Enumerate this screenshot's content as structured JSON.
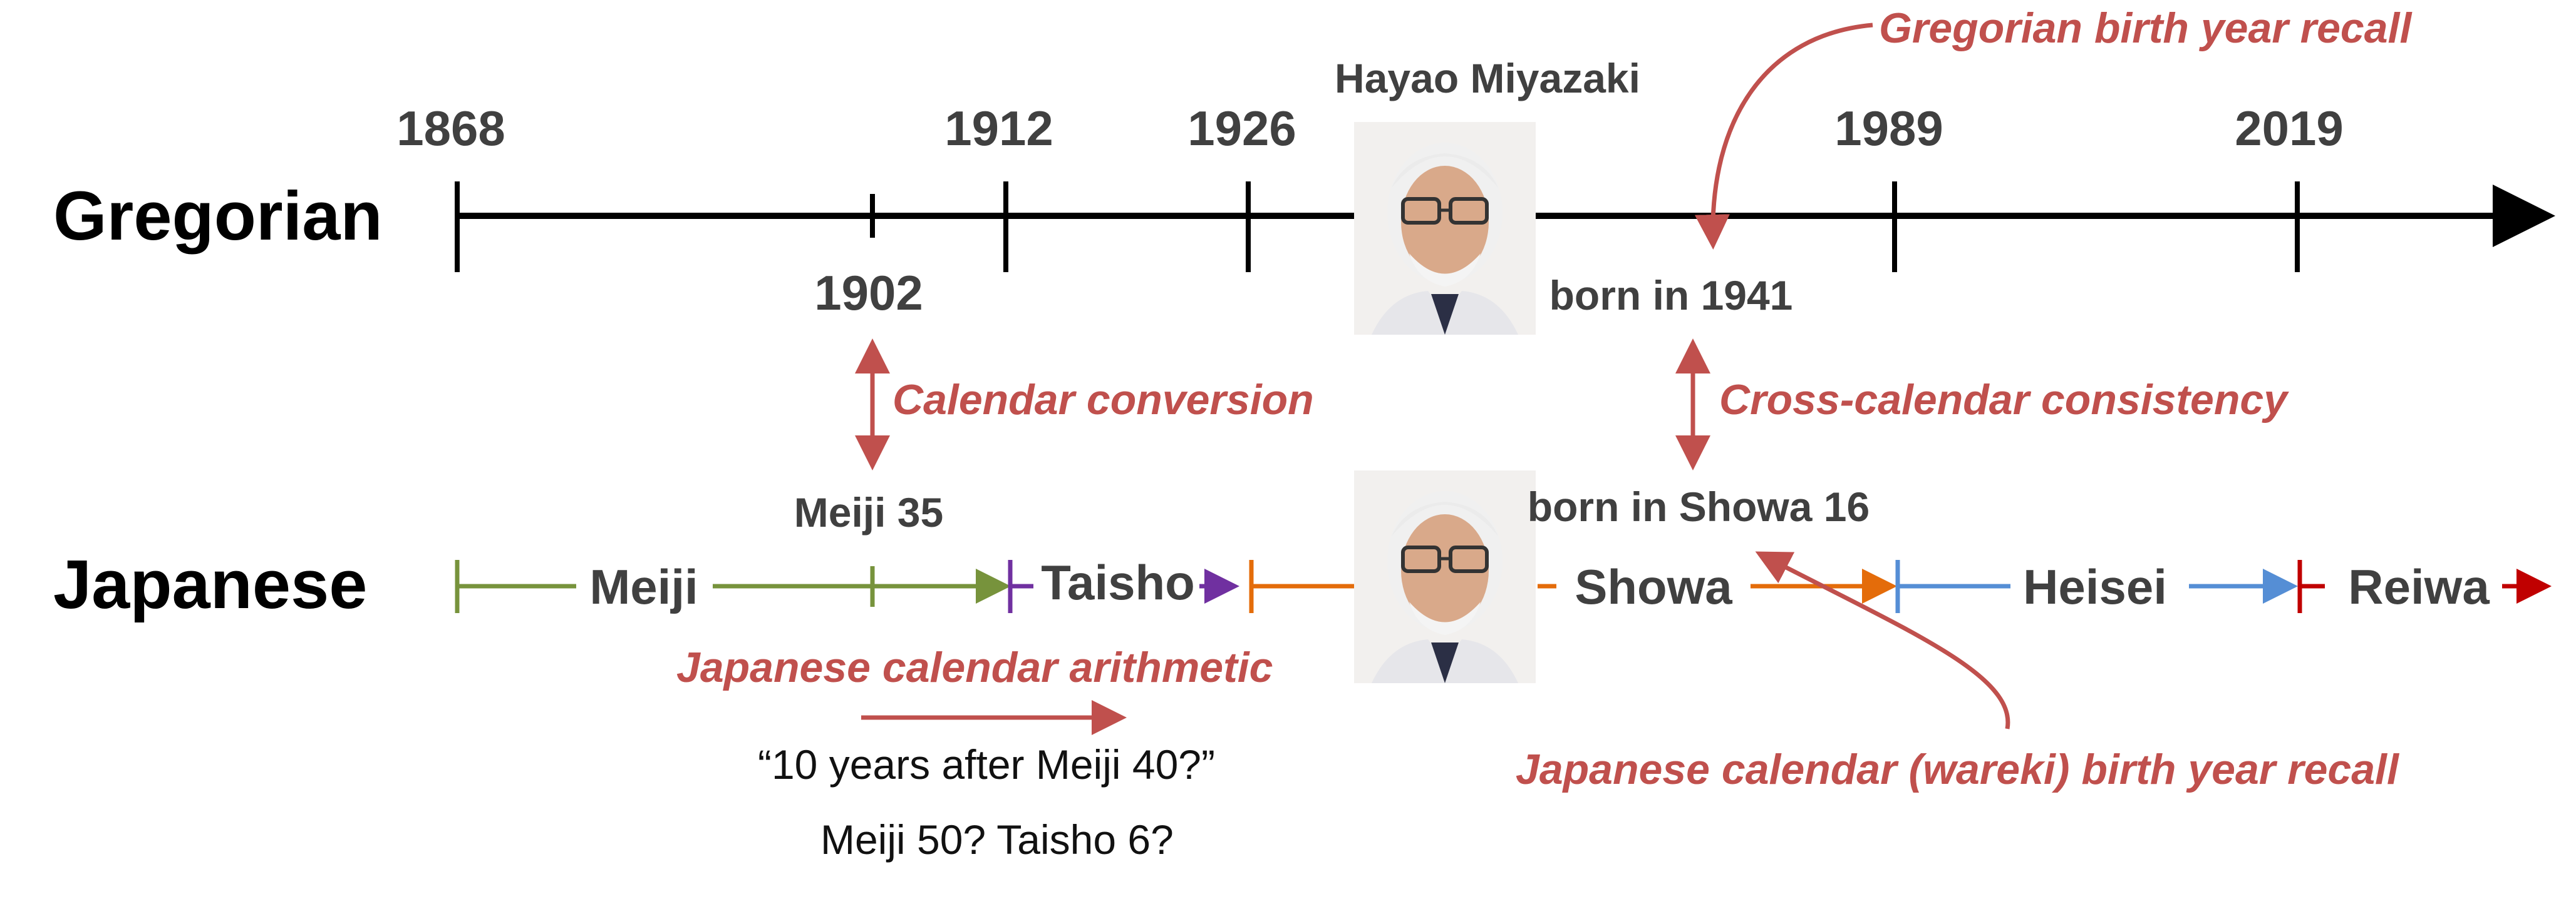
{
  "colors": {
    "axis": "#000000",
    "task": "#c0504d",
    "meiji": "#77933c",
    "taisho": "#7030a0",
    "showa": "#e46c0a",
    "heisei": "#558ed5",
    "reiwa": "#c00000",
    "text": "#404040"
  },
  "rows": {
    "gregorian": "Gregorian",
    "japanese": "Japanese"
  },
  "gregorian_years": {
    "y1868": "1868",
    "y1912": "1912",
    "y1926": "1926",
    "y1989": "1989",
    "y2019": "2019",
    "y1902": "1902"
  },
  "person": {
    "name": "Hayao Miyazaki",
    "born_gregorian": "born in 1941",
    "born_japanese": "born in Showa 16"
  },
  "eras": {
    "meiji": "Meiji",
    "taisho": "Taisho",
    "showa": "Showa",
    "heisei": "Heisei",
    "reiwa": "Reiwa",
    "meiji35": "Meiji 35"
  },
  "tasks": {
    "gregorian_recall": "Gregorian birth year recall",
    "conversion": "Calendar conversion",
    "consistency": "Cross-calendar consistency",
    "arithmetic": "Japanese calendar arithmetic",
    "wareki_recall": "Japanese calendar (wareki) birth year recall"
  },
  "example": {
    "question": "“10 years after Meiji 40?”",
    "answers": "Meiji 50? Taisho 6?"
  }
}
